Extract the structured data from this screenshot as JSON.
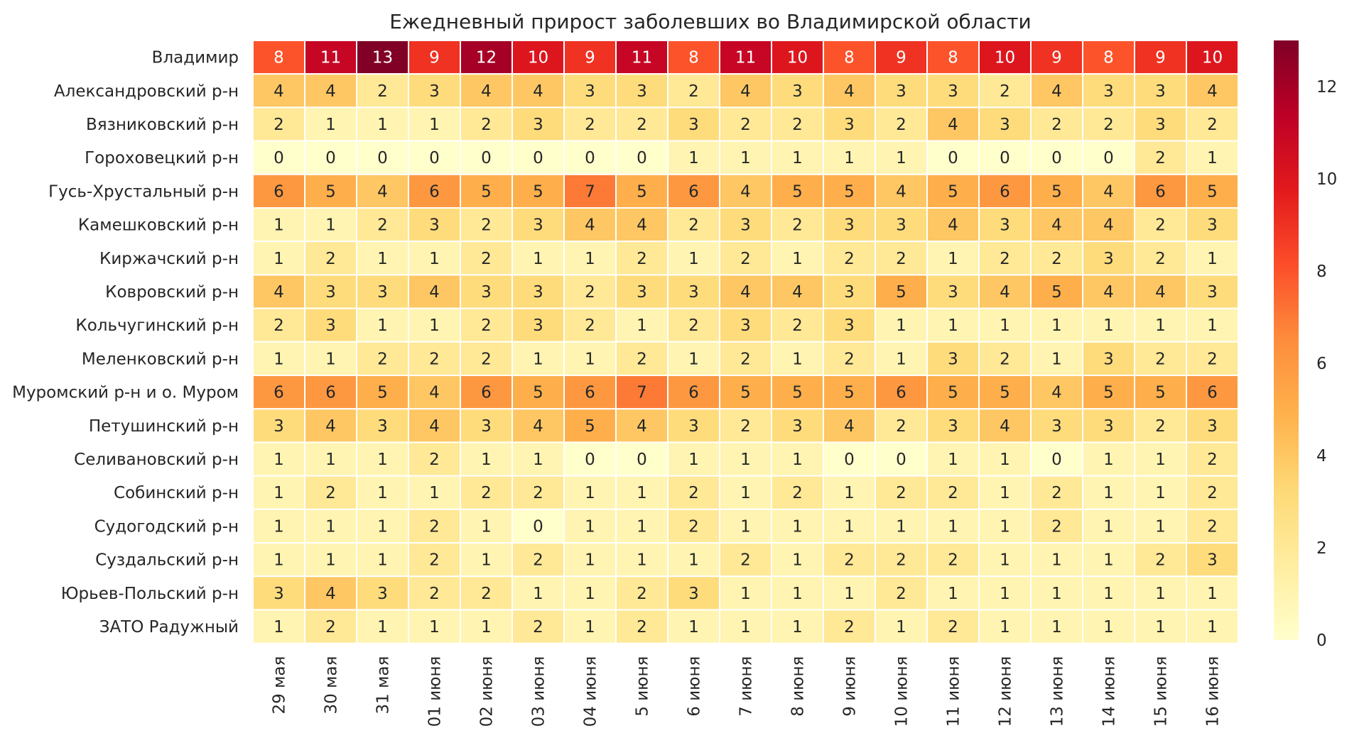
{
  "chart_data": {
    "type": "heatmap",
    "title": "Ежедневный прирост заболевших во Владимирской области",
    "xlabel": "",
    "ylabel": "",
    "columns": [
      "29 мая",
      "30 мая",
      "31 мая",
      "01 июня",
      "02 июня",
      "03 июня",
      "04 июня",
      "5 июня",
      "6 июня",
      "7 июня",
      "8 июня",
      "9 июня",
      "10 июня",
      "11 июня",
      "12 июня",
      "13 июня",
      "14 июня",
      "15 июня",
      "16 июня"
    ],
    "rows": [
      {
        "name": "Владимир",
        "values": [
          8,
          11,
          13,
          9,
          12,
          10,
          9,
          11,
          8,
          11,
          10,
          8,
          9,
          8,
          10,
          9,
          8,
          9,
          10
        ]
      },
      {
        "name": "Александровский р-н",
        "values": [
          4,
          4,
          2,
          3,
          4,
          4,
          3,
          3,
          2,
          4,
          3,
          4,
          3,
          3,
          2,
          4,
          3,
          3,
          4
        ]
      },
      {
        "name": "Вязниковский р-н",
        "values": [
          2,
          1,
          1,
          1,
          2,
          3,
          2,
          2,
          3,
          2,
          2,
          3,
          2,
          4,
          3,
          2,
          2,
          3,
          2
        ]
      },
      {
        "name": "Гороховецкий р-н",
        "values": [
          0,
          0,
          0,
          0,
          0,
          0,
          0,
          0,
          1,
          1,
          1,
          1,
          1,
          0,
          0,
          0,
          0,
          2,
          1
        ]
      },
      {
        "name": "Гусь-Хрустальный р-н",
        "values": [
          6,
          5,
          4,
          6,
          5,
          5,
          7,
          5,
          6,
          4,
          5,
          5,
          4,
          5,
          6,
          5,
          4,
          6,
          5
        ]
      },
      {
        "name": "Камешковский р-н",
        "values": [
          1,
          1,
          2,
          3,
          2,
          3,
          4,
          4,
          2,
          3,
          2,
          3,
          3,
          4,
          3,
          4,
          4,
          2,
          3
        ]
      },
      {
        "name": "Киржачский р-н",
        "values": [
          1,
          2,
          1,
          1,
          2,
          1,
          1,
          2,
          1,
          2,
          1,
          2,
          2,
          1,
          2,
          2,
          3,
          2,
          1
        ]
      },
      {
        "name": "Ковровский р-н",
        "values": [
          4,
          3,
          3,
          4,
          3,
          3,
          2,
          3,
          3,
          4,
          4,
          3,
          5,
          3,
          4,
          5,
          4,
          4,
          3
        ]
      },
      {
        "name": "Кольчугинский р-н",
        "values": [
          2,
          3,
          1,
          1,
          2,
          3,
          2,
          1,
          2,
          3,
          2,
          3,
          1,
          1,
          1,
          1,
          1,
          1,
          1
        ]
      },
      {
        "name": "Меленковский р-н",
        "values": [
          1,
          1,
          2,
          2,
          2,
          1,
          1,
          2,
          1,
          2,
          1,
          2,
          1,
          3,
          2,
          1,
          3,
          2,
          2
        ]
      },
      {
        "name": "Муромский р-н и о. Муром",
        "values": [
          6,
          6,
          5,
          4,
          6,
          5,
          6,
          7,
          6,
          5,
          5,
          5,
          6,
          5,
          5,
          4,
          5,
          5,
          6
        ]
      },
      {
        "name": "Петушинский р-н",
        "values": [
          3,
          4,
          3,
          4,
          3,
          4,
          5,
          4,
          3,
          2,
          3,
          4,
          2,
          3,
          4,
          3,
          3,
          2,
          3
        ]
      },
      {
        "name": "Селивановский р-н",
        "values": [
          1,
          1,
          1,
          2,
          1,
          1,
          0,
          0,
          1,
          1,
          1,
          0,
          0,
          1,
          1,
          0,
          1,
          1,
          2
        ]
      },
      {
        "name": "Собинский р-н",
        "values": [
          1,
          2,
          1,
          1,
          2,
          2,
          1,
          1,
          2,
          1,
          2,
          1,
          2,
          2,
          1,
          2,
          1,
          1,
          2
        ]
      },
      {
        "name": "Судогодский р-н",
        "values": [
          1,
          1,
          1,
          2,
          1,
          0,
          1,
          1,
          2,
          1,
          1,
          1,
          1,
          1,
          1,
          2,
          1,
          1,
          2
        ]
      },
      {
        "name": "Суздальский р-н",
        "values": [
          1,
          1,
          1,
          2,
          1,
          2,
          1,
          1,
          1,
          2,
          1,
          2,
          2,
          2,
          1,
          1,
          1,
          2,
          3
        ]
      },
      {
        "name": "Юрьев-Польский р-н",
        "values": [
          3,
          4,
          3,
          2,
          2,
          1,
          1,
          2,
          3,
          1,
          1,
          1,
          2,
          1,
          1,
          1,
          1,
          1,
          1
        ]
      },
      {
        "name": "ЗАТО Радужный",
        "values": [
          1,
          2,
          1,
          1,
          1,
          2,
          1,
          2,
          1,
          1,
          1,
          2,
          1,
          2,
          1,
          1,
          1,
          1,
          1
        ]
      }
    ],
    "value_range": [
      0,
      13
    ],
    "colormap": [
      "#ffffcc",
      "#ffeda0",
      "#fed976",
      "#feb24c",
      "#fd8d3c",
      "#fc4e2a",
      "#e31a1c",
      "#bd0026",
      "#800026"
    ],
    "colorbar": {
      "ticks": [
        0,
        2,
        4,
        6,
        8,
        10,
        12
      ],
      "placement": "right"
    },
    "cell_text_colors": {
      "dark": "#262626",
      "light": "#ffffff"
    },
    "grid": false
  }
}
